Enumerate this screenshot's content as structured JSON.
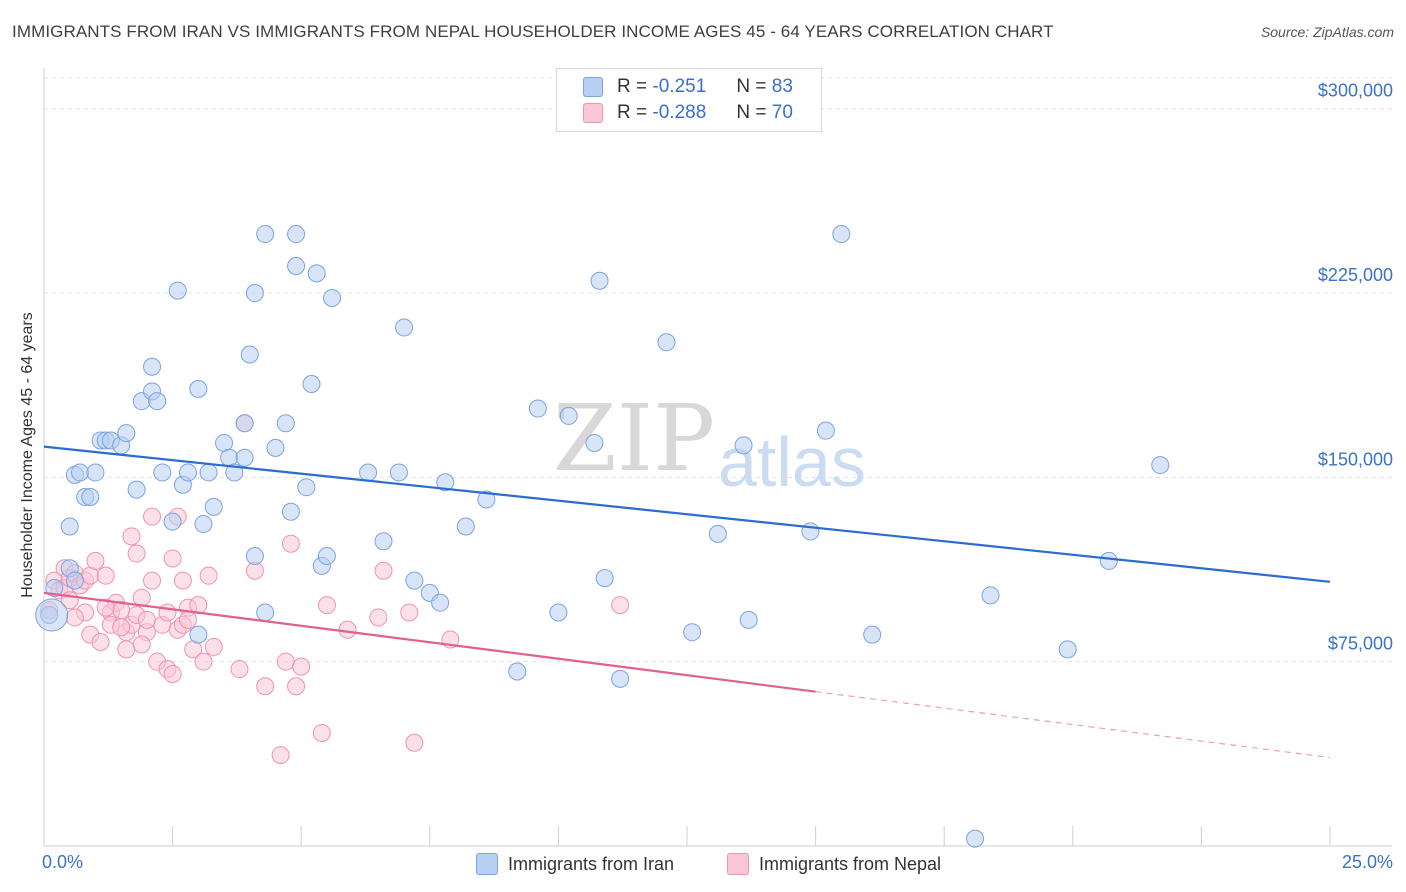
{
  "header": {
    "title": "IMMIGRANTS FROM IRAN VS IMMIGRANTS FROM NEPAL HOUSEHOLDER INCOME AGES 45 - 64 YEARS CORRELATION CHART",
    "source": "Source: ZipAtlas.com"
  },
  "legend": {
    "iran": {
      "r_label": "R =",
      "r_value": "-0.251",
      "n_label": "N =",
      "n_value": "83"
    },
    "nepal": {
      "r_label": "R =",
      "r_value": "-0.288",
      "n_label": "N =",
      "n_value": "70"
    }
  },
  "bottom_legend": {
    "iran": "Immigrants from Iran",
    "nepal": "Immigrants from Nepal"
  },
  "colors": {
    "iran_fill": "#b8d0f3",
    "iran_stroke": "#7ba3e0",
    "iran_line": "#2b6ccf",
    "nepal_fill": "#f9c6d6",
    "nepal_stroke": "#ef93b1",
    "nepal_line": "#e0608e",
    "axis_label": "#3a72c8",
    "grid": "#e3e3e3"
  },
  "watermark": {
    "zip": "ZIP",
    "atlas": "atlas"
  },
  "chart_data": {
    "type": "scatter",
    "title": "IMMIGRANTS FROM IRAN VS IMMIGRANTS FROM NEPAL HOUSEHOLDER INCOME AGES 45 - 64 YEARS CORRELATION CHART",
    "xlabel": "",
    "ylabel": "Householder Income Ages 45 - 64 years",
    "xlim": [
      0,
      25
    ],
    "ylim": [
      0,
      312500
    ],
    "x_tick_labels": [
      "0.0%",
      "25.0%"
    ],
    "y_ticks": [
      75000,
      150000,
      225000,
      300000
    ],
    "y_tick_labels": [
      "$75,000",
      "$150,000",
      "$225,000",
      "$300,000"
    ],
    "grid": true,
    "series": [
      {
        "name": "Immigrants from Iran",
        "r": -0.251,
        "n": 83,
        "trend": {
          "x0": 0,
          "y0": 162500,
          "x1": 25,
          "y1": 107500,
          "solid_until": 25
        },
        "points": [
          [
            0.1,
            94000
          ],
          [
            0.2,
            105000
          ],
          [
            0.5,
            113000
          ],
          [
            0.5,
            130000
          ],
          [
            0.6,
            151000
          ],
          [
            0.6,
            108000
          ],
          [
            0.7,
            152000
          ],
          [
            0.8,
            142000
          ],
          [
            0.9,
            142000
          ],
          [
            1.0,
            152000
          ],
          [
            1.1,
            165000
          ],
          [
            1.2,
            165000
          ],
          [
            1.3,
            165000
          ],
          [
            1.5,
            163000
          ],
          [
            1.6,
            168000
          ],
          [
            1.8,
            145000
          ],
          [
            1.9,
            181000
          ],
          [
            2.1,
            185000
          ],
          [
            2.1,
            195000
          ],
          [
            2.2,
            181000
          ],
          [
            2.3,
            152000
          ],
          [
            2.5,
            132000
          ],
          [
            2.6,
            226000
          ],
          [
            2.7,
            147000
          ],
          [
            2.8,
            152000
          ],
          [
            3.0,
            86000
          ],
          [
            3.0,
            186000
          ],
          [
            3.1,
            131000
          ],
          [
            3.2,
            152000
          ],
          [
            3.3,
            138000
          ],
          [
            3.5,
            164000
          ],
          [
            3.6,
            158000
          ],
          [
            3.7,
            152000
          ],
          [
            3.9,
            172000
          ],
          [
            4.0,
            200000
          ],
          [
            4.1,
            225000
          ],
          [
            4.1,
            118000
          ],
          [
            4.3,
            95000
          ],
          [
            4.3,
            249000
          ],
          [
            4.5,
            162000
          ],
          [
            4.7,
            172000
          ],
          [
            4.8,
            136000
          ],
          [
            4.9,
            236000
          ],
          [
            4.9,
            249000
          ],
          [
            5.1,
            146000
          ],
          [
            5.2,
            188000
          ],
          [
            5.3,
            233000
          ],
          [
            5.4,
            114000
          ],
          [
            5.5,
            118000
          ],
          [
            5.6,
            223000
          ],
          [
            6.3,
            152000
          ],
          [
            6.6,
            124000
          ],
          [
            6.9,
            152000
          ],
          [
            7.0,
            211000
          ],
          [
            7.2,
            108000
          ],
          [
            7.5,
            103000
          ],
          [
            7.7,
            99000
          ],
          [
            7.8,
            148000
          ],
          [
            8.2,
            130000
          ],
          [
            8.6,
            141000
          ],
          [
            9.2,
            71000
          ],
          [
            9.6,
            178000
          ],
          [
            10.0,
            95000
          ],
          [
            10.2,
            175000
          ],
          [
            10.7,
            164000
          ],
          [
            10.8,
            230000
          ],
          [
            10.9,
            109000
          ],
          [
            11.2,
            68000
          ],
          [
            12.1,
            205000
          ],
          [
            12.6,
            87000
          ],
          [
            13.1,
            127000
          ],
          [
            13.6,
            163000
          ],
          [
            13.7,
            92000
          ],
          [
            14.9,
            128000
          ],
          [
            15.2,
            169000
          ],
          [
            15.5,
            249000
          ],
          [
            16.1,
            86000
          ],
          [
            18.4,
            102000
          ],
          [
            19.9,
            80000
          ],
          [
            20.7,
            116000
          ],
          [
            21.7,
            155000
          ],
          [
            18.1,
            3000
          ],
          [
            3.9,
            158000
          ]
        ]
      },
      {
        "name": "Immigrants from Nepal",
        "r": -0.288,
        "n": 70,
        "trend": {
          "x0": 0,
          "y0": 103000,
          "x1": 25,
          "y1": 36000,
          "solid_until": 15
        },
        "points": [
          [
            0.1,
            96000
          ],
          [
            0.2,
            108000
          ],
          [
            0.3,
            104000
          ],
          [
            0.4,
            113000
          ],
          [
            0.4,
            105000
          ],
          [
            0.5,
            109000
          ],
          [
            0.6,
            111000
          ],
          [
            0.7,
            106000
          ],
          [
            0.8,
            108000
          ],
          [
            0.9,
            86000
          ],
          [
            0.9,
            110000
          ],
          [
            1.0,
            116000
          ],
          [
            1.1,
            83000
          ],
          [
            1.2,
            110000
          ],
          [
            1.3,
            95000
          ],
          [
            1.3,
            90000
          ],
          [
            1.4,
            99000
          ],
          [
            1.5,
            96000
          ],
          [
            1.6,
            87000
          ],
          [
            1.6,
            80000
          ],
          [
            1.7,
            90000
          ],
          [
            1.7,
            126000
          ],
          [
            1.8,
            119000
          ],
          [
            1.8,
            94000
          ],
          [
            1.9,
            101000
          ],
          [
            2.0,
            87000
          ],
          [
            2.1,
            134000
          ],
          [
            2.1,
            108000
          ],
          [
            2.2,
            75000
          ],
          [
            2.3,
            90000
          ],
          [
            2.4,
            95000
          ],
          [
            2.4,
            72000
          ],
          [
            2.5,
            117000
          ],
          [
            2.5,
            70000
          ],
          [
            2.6,
            88000
          ],
          [
            2.6,
            134000
          ],
          [
            2.7,
            108000
          ],
          [
            2.7,
            90000
          ],
          [
            2.8,
            97000
          ],
          [
            2.8,
            92000
          ],
          [
            2.9,
            80000
          ],
          [
            3.1,
            75000
          ],
          [
            3.2,
            110000
          ],
          [
            3.3,
            81000
          ],
          [
            3.8,
            72000
          ],
          [
            3.9,
            172000
          ],
          [
            4.1,
            112000
          ],
          [
            4.3,
            65000
          ],
          [
            4.6,
            37000
          ],
          [
            4.7,
            75000
          ],
          [
            4.8,
            123000
          ],
          [
            4.9,
            65000
          ],
          [
            5.0,
            73000
          ],
          [
            5.4,
            46000
          ],
          [
            5.5,
            98000
          ],
          [
            5.9,
            88000
          ],
          [
            6.5,
            93000
          ],
          [
            6.6,
            112000
          ],
          [
            7.1,
            95000
          ],
          [
            7.2,
            42000
          ],
          [
            7.9,
            84000
          ],
          [
            11.2,
            98000
          ],
          [
            1.2,
            97000
          ],
          [
            0.8,
            95000
          ],
          [
            0.6,
            93000
          ],
          [
            2.0,
            92000
          ],
          [
            1.5,
            89000
          ],
          [
            3.0,
            98000
          ],
          [
            0.5,
            100000
          ],
          [
            1.9,
            82000
          ]
        ]
      }
    ]
  }
}
